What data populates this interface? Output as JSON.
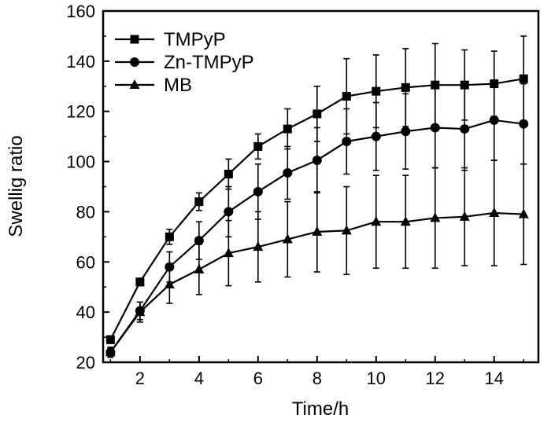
{
  "chart_data": {
    "type": "line",
    "xlabel": "Time/h",
    "ylabel": "Swellig ratio",
    "xlim": [
      0.75,
      15.5
    ],
    "ylim": [
      20,
      160
    ],
    "xticks": [
      2,
      4,
      6,
      8,
      10,
      12,
      14
    ],
    "yticks": [
      20,
      40,
      60,
      80,
      100,
      120,
      140,
      160
    ],
    "grid": false,
    "legend_position": "top-left",
    "x": [
      1,
      2,
      3,
      4,
      5,
      6,
      7,
      8,
      9,
      10,
      11,
      12,
      13,
      14,
      15
    ],
    "series": [
      {
        "name": "TMPyP",
        "marker": "square",
        "values": [
          29,
          52,
          70,
          84,
          95,
          106,
          113,
          119,
          126,
          128,
          129.5,
          130.5,
          130.5,
          131,
          133
        ],
        "errors": [
          1.5,
          1.5,
          3,
          3.5,
          6,
          5,
          8,
          11,
          15,
          14.5,
          15.5,
          16.5,
          14,
          13,
          17
        ]
      },
      {
        "name": "Zn-TMPyP",
        "marker": "circle",
        "values": [
          24,
          40.5,
          58,
          68.5,
          80,
          88,
          95.5,
          100.5,
          108,
          110,
          112,
          113.5,
          113,
          116.5,
          115
        ],
        "errors": [
          1.5,
          3.5,
          6,
          7.5,
          10,
          11,
          10.5,
          13,
          13,
          13.5,
          15,
          16,
          16.5,
          16,
          16
        ]
      },
      {
        "name": "MB",
        "marker": "triangle",
        "values": [
          24,
          40,
          51,
          57,
          63.5,
          66,
          69,
          72,
          72.5,
          76,
          76,
          77.5,
          78,
          79.5,
          79
        ],
        "errors": [
          2,
          4,
          7.5,
          10,
          13,
          14,
          15,
          16,
          17.5,
          18.5,
          18.5,
          20,
          19.5,
          21,
          20
        ]
      }
    ]
  }
}
